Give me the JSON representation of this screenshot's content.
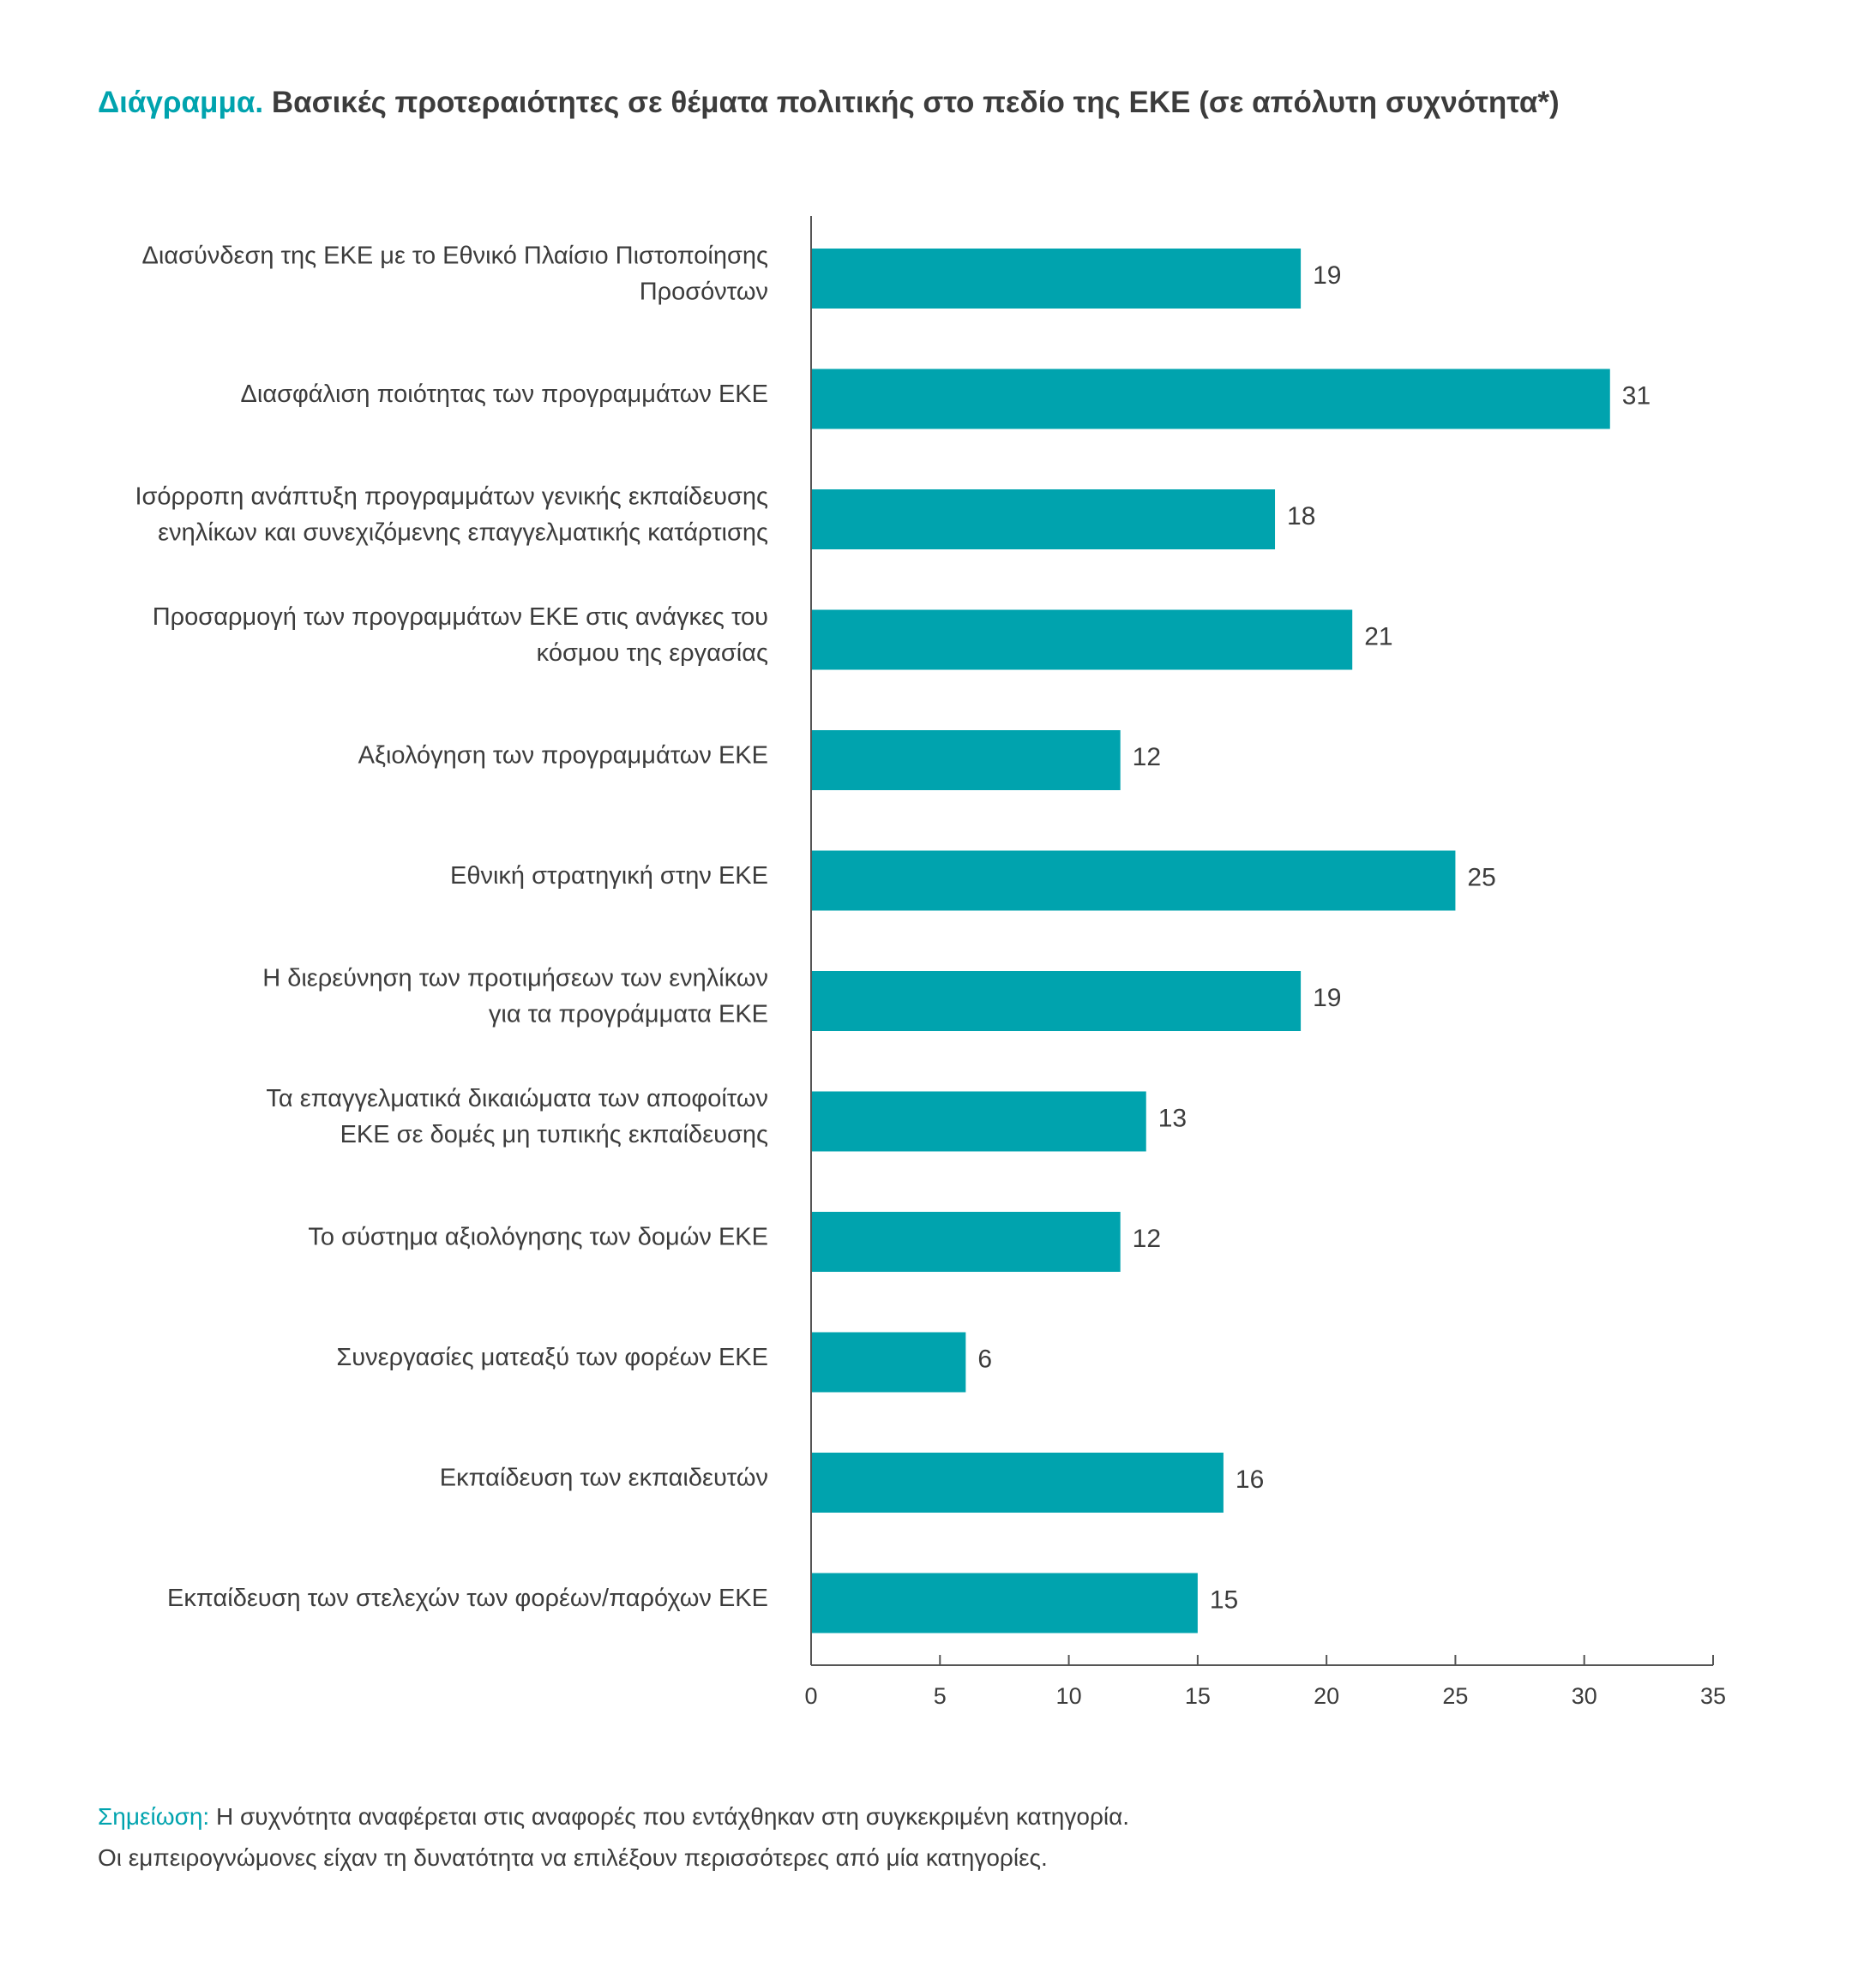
{
  "title": {
    "prefix": "Διάγραμμα.",
    "text": "Βασικές προτεραιότητες σε θέματα πολιτικής στο πεδίο της ΕΚΕ (σε απόλυτη συχνότητα*)"
  },
  "colors": {
    "accent": "#00a3ae",
    "bar": "#00a3ae",
    "text": "#3c3c3c",
    "axis": "#555555"
  },
  "chart_data": {
    "type": "bar",
    "orientation": "horizontal",
    "title": "Διάγραμμα. Βασικές προτεραιότητες σε θέματα πολιτικής στο πεδίο της ΕΚΕ (σε απόλυτη συχνότητα*)",
    "categories": [
      [
        "Διασύνδεση της ΕΚΕ με το Εθνικό Πλαίσιο Πιστοποίησης",
        "Προσόντων"
      ],
      [
        "Διασφάλιση ποιότητας των προγραμμάτων ΕΚΕ"
      ],
      [
        "Ισόρροπη ανάπτυξη προγραμμάτων γενικής εκπαίδευσης",
        "ενηλίκων και συνεχιζόμενης επαγγελματικής κατάρτισης"
      ],
      [
        "Προσαρμογή των προγραμμάτων ΕΚΕ στις ανάγκες του",
        "κόσμου της εργασίας"
      ],
      [
        "Αξιολόγηση των προγραμμάτων ΕΚΕ"
      ],
      [
        "Εθνική στρατηγική στην ΕΚΕ"
      ],
      [
        "Η διερεύνηση των προτιμήσεων των ενηλίκων",
        "για τα προγράμματα ΕΚΕ"
      ],
      [
        "Τα επαγγελματικά δικαιώματα των αποφοίτων",
        "ΕΚΕ σε δομές μη τυπικής εκπαίδευσης"
      ],
      [
        "Το σύστημα αξιολόγησης των δομών ΕΚΕ"
      ],
      [
        "Συνεργασίες ματεαξύ των φορέων ΕΚΕ"
      ],
      [
        "Εκπαίδευση των εκπαιδευτών"
      ],
      [
        "Εκπαίδευση των στελεχών των φορέων/παρόχων ΕΚΕ"
      ]
    ],
    "values": [
      19,
      31,
      18,
      21,
      12,
      25,
      19,
      13,
      12,
      6,
      16,
      15
    ],
    "value_labels": [
      "19",
      "31",
      "18",
      "21",
      "12",
      "25",
      "19",
      "13",
      "12",
      "6",
      "16",
      "15"
    ],
    "xlim": [
      0,
      35
    ],
    "xticks": [
      0,
      5,
      10,
      15,
      20,
      25,
      30,
      35
    ],
    "xtick_labels": [
      "0",
      "5",
      "10",
      "15",
      "20",
      "25",
      "30",
      "35"
    ],
    "xlabel": "",
    "ylabel": "",
    "grid": false,
    "legend": "none"
  },
  "note": {
    "label": "Σημείωση:",
    "line1": "Η συχνότητα αναφέρεται στις αναφορές που εντάχθηκαν στη συγκεκριμένη κατηγορία.",
    "line2": "Οι εμπειρογνώμονες είχαν τη δυνατότητα να επιλέξουν περισσότερες από μία κατηγορίες."
  }
}
